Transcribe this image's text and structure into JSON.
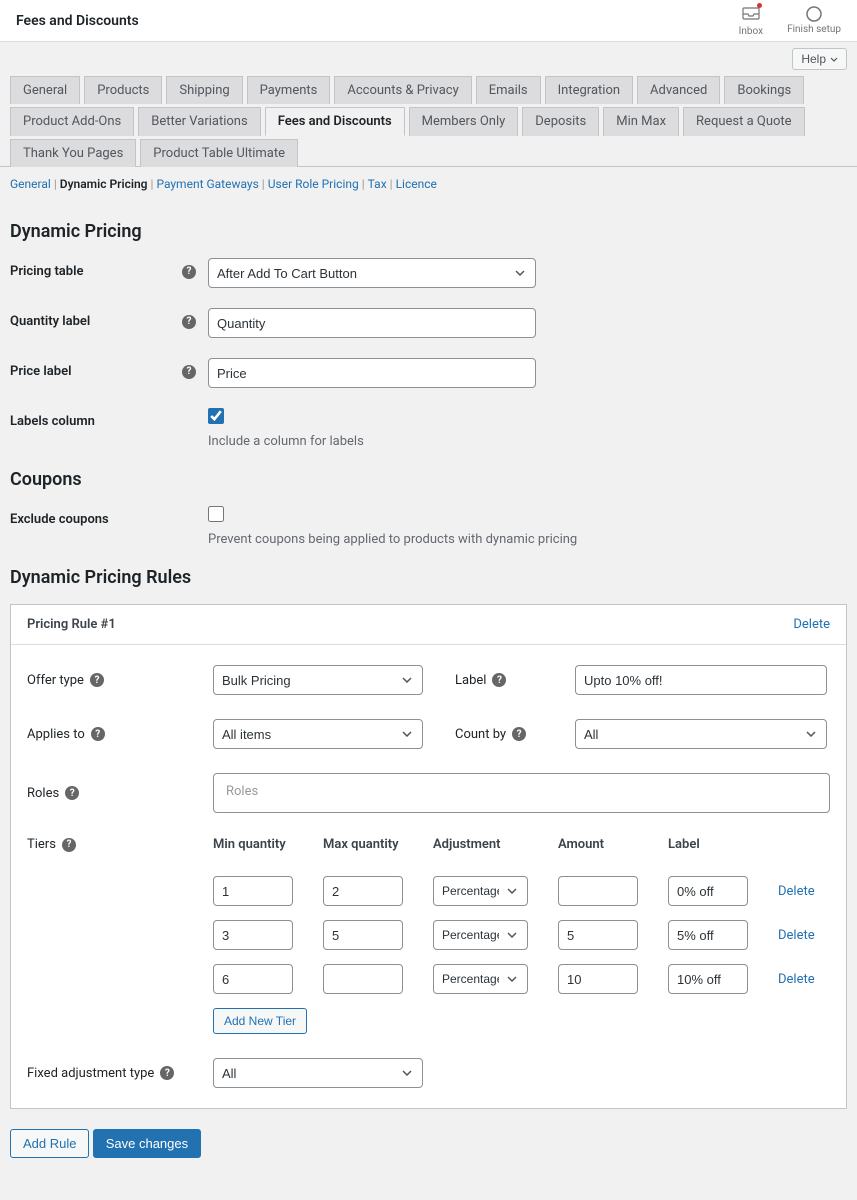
{
  "colors": {
    "primary": "#2271b1",
    "text": "#1d2327",
    "background": "#f1f1f1",
    "white": "#ffffff",
    "border": "#c3c4c7",
    "tab_bg": "#dcdcde",
    "help_text": "#646970"
  },
  "topbar": {
    "title": "Fees and Discounts",
    "inbox_label": "Inbox",
    "finish_setup_label": "Finish setup"
  },
  "help_btn": "Help",
  "tabs": [
    "General",
    "Products",
    "Shipping",
    "Payments",
    "Accounts & Privacy",
    "Emails",
    "Integration",
    "Advanced",
    "Bookings",
    "Product Add-Ons",
    "Better Variations",
    "Fees and Discounts",
    "Members Only",
    "Deposits",
    "Min Max",
    "Request a Quote",
    "Thank You Pages",
    "Product Table Ultimate"
  ],
  "active_tab_index": 11,
  "subtabs": [
    {
      "label": "General",
      "active": false
    },
    {
      "label": "Dynamic Pricing",
      "active": true
    },
    {
      "label": "Payment Gateways",
      "active": false
    },
    {
      "label": "User Role Pricing",
      "active": false
    },
    {
      "label": "Tax",
      "active": false
    },
    {
      "label": "Licence",
      "active": false
    }
  ],
  "sections": {
    "dynamic_pricing": {
      "title": "Dynamic Pricing",
      "pricing_table_label": "Pricing table",
      "pricing_table_value": "After Add To Cart Button",
      "quantity_label_label": "Quantity label",
      "quantity_label_value": "Quantity",
      "price_label_label": "Price label",
      "price_label_value": "Price",
      "labels_column_label": "Labels column",
      "labels_column_checked": true,
      "labels_column_help": "Include a column for labels"
    },
    "coupons": {
      "title": "Coupons",
      "exclude_label": "Exclude coupons",
      "exclude_checked": false,
      "exclude_help": "Prevent coupons being applied to products with dynamic pricing"
    },
    "rules": {
      "title": "Dynamic Pricing Rules",
      "rule_title": "Pricing Rule #1",
      "delete_label": "Delete",
      "offer_type_label": "Offer type",
      "offer_type_value": "Bulk Pricing",
      "label_label": "Label",
      "label_value": "Upto 10% off!",
      "applies_to_label": "Applies to",
      "applies_to_value": "All items",
      "count_by_label": "Count by",
      "count_by_value": "All",
      "roles_label": "Roles",
      "roles_placeholder": "Roles",
      "tiers_label": "Tiers",
      "tier_headers": {
        "min": "Min quantity",
        "max": "Max quantity",
        "adjustment": "Adjustment",
        "amount": "Amount",
        "label": "Label"
      },
      "adjustment_option": "Percentage Di",
      "tiers": [
        {
          "min": "1",
          "max": "2",
          "amount": "",
          "label": "0% off"
        },
        {
          "min": "3",
          "max": "5",
          "amount": "5",
          "label": "5% off"
        },
        {
          "min": "6",
          "max": "",
          "amount": "10",
          "label": "10% off"
        }
      ],
      "add_tier_label": "Add New Tier",
      "fixed_adj_label": "Fixed adjustment type",
      "fixed_adj_value": "All"
    }
  },
  "add_rule_label": "Add Rule",
  "save_label": "Save changes"
}
